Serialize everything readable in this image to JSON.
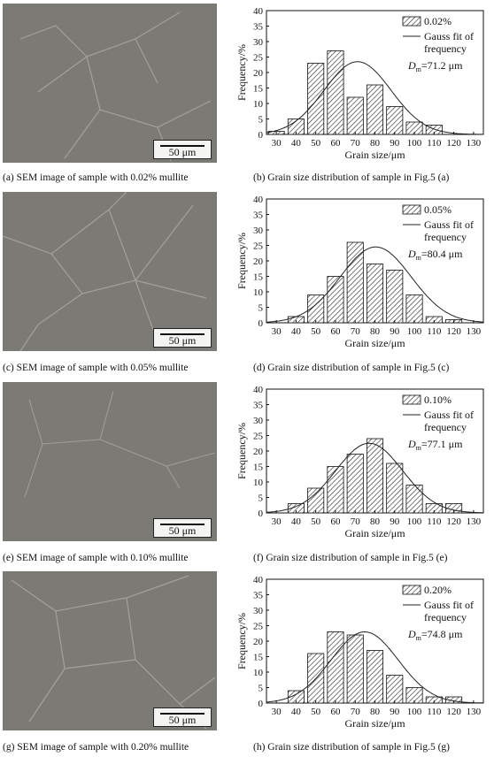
{
  "panels": [
    {
      "sem_caption": "(a) SEM image of sample with 0.02% mullite",
      "scale_label": "50 μm",
      "chart_caption": "(b) Grain size distribution of sample in Fig.5 (a)",
      "chart_data": {
        "type": "bar",
        "categories": [
          30,
          40,
          50,
          60,
          70,
          80,
          90,
          100,
          110,
          120,
          130
        ],
        "series": [
          {
            "name": "0.02%",
            "values": [
              1,
              5,
              23,
              27,
              12,
              16,
              9,
              4,
              3,
              0,
              0
            ]
          },
          {
            "name": "Gauss fit of frequency",
            "fit": {
              "mean": 71.2,
              "sigma": 17,
              "peak": 23.5
            }
          }
        ],
        "legend": [
          "0.02%",
          "Gauss fit of",
          "frequency"
        ],
        "annotation": {
          "prefix": "D",
          "sub": "m",
          "value": "=71.2 μm"
        },
        "xlabel": "Grain size/μm",
        "ylabel": "Frequency/%",
        "ylim": [
          0,
          40
        ],
        "yticks": [
          0,
          5,
          10,
          15,
          20,
          25,
          30,
          35,
          40
        ]
      }
    },
    {
      "sem_caption": "(c) SEM image of sample with 0.05% mullite",
      "scale_label": "50 μm",
      "chart_caption": "(d) Grain size distribution of sample in Fig.5 (c)",
      "chart_data": {
        "type": "bar",
        "categories": [
          30,
          40,
          50,
          60,
          70,
          80,
          90,
          100,
          110,
          120,
          130
        ],
        "series": [
          {
            "name": "0.05%",
            "values": [
              0,
              2,
              9,
              15,
              26,
              19,
              17,
              9,
              2,
              1,
              0
            ]
          },
          {
            "name": "Gauss fit of frequency",
            "fit": {
              "mean": 80.4,
              "sigma": 18,
              "peak": 24.5
            }
          }
        ],
        "legend": [
          "0.05%",
          "Gauss fit of",
          "frequency"
        ],
        "annotation": {
          "prefix": "D",
          "sub": "m",
          "value": "=80.4 μm"
        },
        "xlabel": "Grain size/μm",
        "ylabel": "Frequency/%",
        "ylim": [
          0,
          40
        ],
        "yticks": [
          0,
          5,
          10,
          15,
          20,
          25,
          30,
          35,
          40
        ]
      }
    },
    {
      "sem_caption": "(e) SEM image of sample with 0.10% mullite",
      "scale_label": "50 μm",
      "chart_caption": "(f) Grain size distribution of sample in Fig.5 (e)",
      "chart_data": {
        "type": "bar",
        "categories": [
          30,
          40,
          50,
          60,
          70,
          80,
          90,
          100,
          110,
          120,
          130
        ],
        "series": [
          {
            "name": "0.10%",
            "values": [
              0,
              3,
              8,
              15,
              19,
              24,
              16,
              9,
              3,
              3,
              0
            ]
          },
          {
            "name": "Gauss fit of frequency",
            "fit": {
              "mean": 77.1,
              "sigma": 17,
              "peak": 22.5
            }
          }
        ],
        "legend": [
          "0.10%",
          "Gauss fit of",
          "frequency"
        ],
        "annotation": {
          "prefix": "D",
          "sub": "m",
          "value": "=77.1 μm"
        },
        "xlabel": "Grain size/μm",
        "ylabel": "Frequency/%",
        "ylim": [
          0,
          40
        ],
        "yticks": [
          0,
          5,
          10,
          15,
          20,
          25,
          30,
          35,
          40
        ]
      }
    },
    {
      "sem_caption": "(g) SEM image of sample with 0.20% mullite",
      "scale_label": "50 μm",
      "chart_caption": "(h) Grain size distribution of sample in Fig.5 (g)",
      "chart_data": {
        "type": "bar",
        "categories": [
          30,
          40,
          50,
          60,
          70,
          80,
          90,
          100,
          110,
          120,
          130
        ],
        "series": [
          {
            "name": "0.20%",
            "values": [
              0,
              4,
              16,
              23,
              22,
              17,
              9,
              5,
              2,
              2,
              0
            ]
          },
          {
            "name": "Gauss fit of frequency",
            "fit": {
              "mean": 74.8,
              "sigma": 17,
              "peak": 23
            }
          }
        ],
        "legend": [
          "0.20%",
          "Gauss fit of",
          "frequency"
        ],
        "annotation": {
          "prefix": "D",
          "sub": "m",
          "value": "=74.8 μm"
        },
        "xlabel": "Grain size/μm",
        "ylabel": "Frequency/%",
        "ylim": [
          0,
          40
        ],
        "yticks": [
          0,
          5,
          10,
          15,
          20,
          25,
          30,
          35,
          40
        ]
      }
    }
  ],
  "colors": {
    "sem_background": "#7c7a74",
    "bar_fill": "#ffffff",
    "hatch": "#333333",
    "axis": "#111111"
  }
}
